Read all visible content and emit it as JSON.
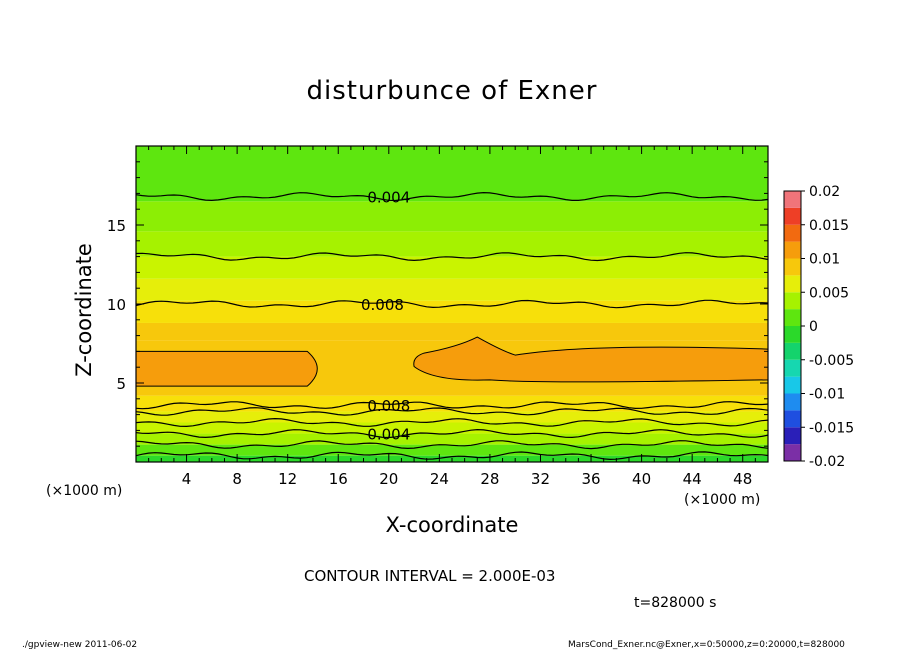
{
  "chart_data": {
    "type": "contour",
    "title": "disturbunce of Exner",
    "xlabel": "X-coordinate",
    "ylabel": "Z-coordinate",
    "x_unit_left": "(×1000 m)",
    "x_unit_right": "(×1000 m)",
    "xlim": [
      0,
      50
    ],
    "ylim": [
      0,
      20
    ],
    "x_ticks": [
      4,
      8,
      12,
      16,
      20,
      24,
      28,
      32,
      36,
      40,
      44,
      48
    ],
    "y_ticks": [
      5,
      10,
      15
    ],
    "colorbar": {
      "min": -0.02,
      "max": 0.02,
      "step": 0.0025,
      "tick_labels": [
        "0.02",
        "0.015",
        "0.01",
        "0.005",
        "0",
        "-0.005",
        "-0.01",
        "-0.015",
        "-0.02"
      ],
      "colors": [
        "#7b2fa6",
        "#2a1fb8",
        "#1f4fe0",
        "#1e8cf0",
        "#18c8e8",
        "#16d7b0",
        "#14d36c",
        "#2bd92a",
        "#5ee60f",
        "#a6f200",
        "#e6ee0a",
        "#f7c80c",
        "#f69d0c",
        "#f26a10",
        "#ee3f26",
        "#f0747a"
      ]
    },
    "contour_labels": [
      "0.004",
      "0.008",
      "0.008",
      "0.004"
    ],
    "contour_interval": "CONTOUR INTERVAL = 2.000E-03",
    "time": "t=828000 s",
    "fill_bands": [
      {
        "value": 0.0025,
        "z": [
          0.0,
          0.4
        ],
        "color": "#2bd92a"
      },
      {
        "value": 0.0035,
        "z": [
          0.4,
          1.1
        ],
        "color": "#5ee60f"
      },
      {
        "value": 0.0045,
        "z": [
          1.1,
          1.8
        ],
        "color": "#a6f200"
      },
      {
        "value": 0.0055,
        "z": [
          1.8,
          2.5
        ],
        "color": "#c9f400"
      },
      {
        "value": 0.0065,
        "z": [
          2.5,
          3.2
        ],
        "color": "#e6ee0a"
      },
      {
        "value": 0.0075,
        "z": [
          3.2,
          4.2
        ],
        "color": "#f7e00a"
      },
      {
        "value": 0.0085,
        "z": [
          4.2,
          7.7
        ],
        "color": "#f7c80c"
      },
      {
        "value": 0.0095,
        "z": [
          7.7,
          8.8
        ],
        "color": "#f7c80c"
      },
      {
        "value": 0.0085,
        "z": [
          8.8,
          10.2
        ],
        "color": "#f7e00a"
      },
      {
        "value": 0.0075,
        "z": [
          10.2,
          11.6
        ],
        "color": "#e6ee0a"
      },
      {
        "value": 0.0065,
        "z": [
          11.6,
          13.0
        ],
        "color": "#c9f400"
      },
      {
        "value": 0.0055,
        "z": [
          13.0,
          14.6
        ],
        "color": "#a6f200"
      },
      {
        "value": 0.0045,
        "z": [
          14.6,
          16.5
        ],
        "color": "#8cee05"
      },
      {
        "value": 0.0035,
        "z": [
          16.5,
          20.0
        ],
        "color": "#5ee60f"
      }
    ],
    "max_regions": [
      {
        "value": 0.01,
        "x": [
          0,
          14.5
        ],
        "z": [
          4.8,
          7.0
        ]
      },
      {
        "value": 0.01,
        "x": [
          22,
          50
        ],
        "z": [
          5.2,
          7.4
        ]
      }
    ],
    "contour_lines": [
      {
        "z": 0.4
      },
      {
        "z": 1.1
      },
      {
        "z": 1.8
      },
      {
        "z": 2.5
      },
      {
        "z": 3.2
      },
      {
        "z": 3.6
      },
      {
        "z": 10.0
      },
      {
        "z": 13.0
      },
      {
        "z": 16.8
      }
    ]
  },
  "footer": {
    "left": "./gpview-new   2011-06-02",
    "right": "MarsCond_Exner.nc@Exner,x=0:50000,z=0:20000,t=828000"
  }
}
